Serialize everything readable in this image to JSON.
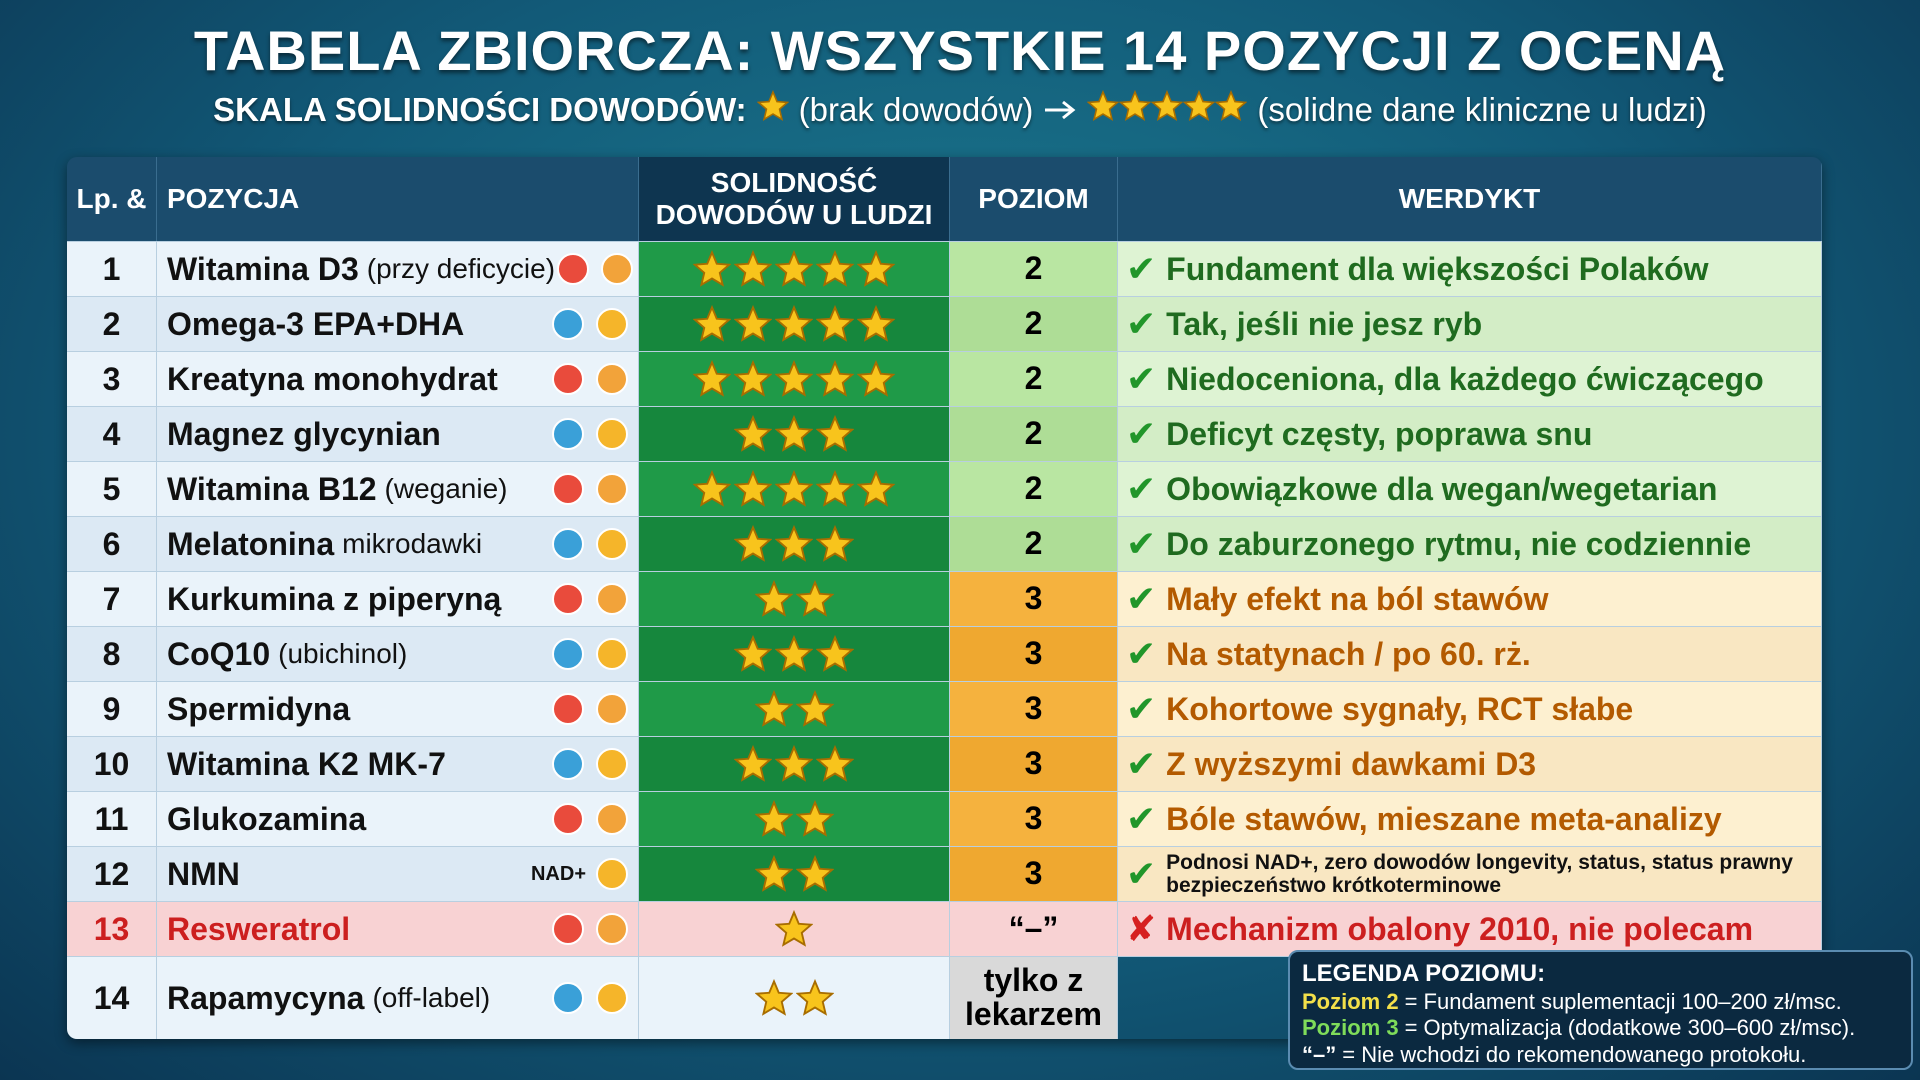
{
  "header": {
    "title": "TABELA ZBIORCZA: WSZYSTKIE 14 POZYCJI Z OCENĄ",
    "scale_label": "SKALA SOLIDNOŚCI DOWODÓW:",
    "scale_min_stars": 1,
    "scale_min_text": "(brak dowodów)",
    "scale_max_stars": 5,
    "scale_max_text": "(solidne dane kliniczne u ludzi)"
  },
  "table": {
    "columns": [
      "Lp. &",
      "POZYCJA",
      "SOLIDNOŚĆ DOWODÓW U LUDZI",
      "POZIOM",
      "WERDYKT"
    ],
    "rows": [
      {
        "num": 1,
        "name": "Witamina D3",
        "note": "(przy deficycie)",
        "stars": 5,
        "level": "2",
        "verdict_mark": "✔",
        "verdict": "Fundament dla większości Polaków",
        "bg": "#eaf3fa",
        "stars_bg": "#1f9a48",
        "level_bg": "#b9e6a2",
        "verdict_bg": "#def3d3",
        "text_color": "#1f6b1f",
        "name_color": "#111111"
      },
      {
        "num": 2,
        "name": "Omega-3 EPA+DHA",
        "note": "",
        "stars": 5,
        "level": "2",
        "verdict_mark": "✔",
        "verdict": "Tak, jeśli nie jesz ryb",
        "bg": "#dce9f4",
        "stars_bg": "#16873d",
        "level_bg": "#aedd96",
        "verdict_bg": "#d3edc6",
        "text_color": "#1f6b1f",
        "name_color": "#111111"
      },
      {
        "num": 3,
        "name": "Kreatyna monohydrat",
        "note": "",
        "stars": 5,
        "level": "2",
        "verdict_mark": "✔",
        "verdict": "Niedoceniona, dla każdego ćwiczącego",
        "bg": "#eaf3fa",
        "stars_bg": "#1f9a48",
        "level_bg": "#b9e6a2",
        "verdict_bg": "#def3d3",
        "text_color": "#1f6b1f",
        "name_color": "#111111"
      },
      {
        "num": 4,
        "name": "Magnez glycynian",
        "note": "",
        "stars": 3,
        "level": "2",
        "verdict_mark": "✔",
        "verdict": "Deficyt częsty, poprawa snu",
        "bg": "#dce9f4",
        "stars_bg": "#16873d",
        "level_bg": "#aedd96",
        "verdict_bg": "#d3edc6",
        "text_color": "#1f6b1f",
        "name_color": "#111111"
      },
      {
        "num": 5,
        "name": "Witamina B12",
        "note": "(weganie)",
        "stars": 5,
        "level": "2",
        "verdict_mark": "✔",
        "verdict": "Obowiązkowe dla wegan/wegetarian",
        "bg": "#eaf3fa",
        "stars_bg": "#1f9a48",
        "level_bg": "#b9e6a2",
        "verdict_bg": "#def3d3",
        "text_color": "#1f6b1f",
        "name_color": "#111111"
      },
      {
        "num": 6,
        "name": "Melatonina",
        "note": "mikrodawki",
        "stars": 3,
        "level": "2",
        "verdict_mark": "✔",
        "verdict": "Do zaburzonego rytmu, nie codziennie",
        "bg": "#dce9f4",
        "stars_bg": "#16873d",
        "level_bg": "#aedd96",
        "verdict_bg": "#d3edc6",
        "text_color": "#1f6b1f",
        "name_color": "#111111"
      },
      {
        "num": 7,
        "name": "Kurkumina z piperyną",
        "note": "",
        "stars": 2,
        "level": "3",
        "verdict_mark": "✔",
        "verdict": "Mały efekt na ból stawów",
        "bg": "#eaf3fa",
        "stars_bg": "#1f9a48",
        "level_bg": "#f5b23e",
        "verdict_bg": "#fdf0d0",
        "text_color": "#b35a00",
        "name_color": "#111111"
      },
      {
        "num": 8,
        "name": "CoQ10",
        "note": "(ubichinol)",
        "stars": 3,
        "level": "3",
        "verdict_mark": "✔",
        "verdict": "Na statynach / po 60. rż.",
        "bg": "#dce9f4",
        "stars_bg": "#16873d",
        "level_bg": "#efa830",
        "verdict_bg": "#f9e7c2",
        "text_color": "#b35a00",
        "name_color": "#111111"
      },
      {
        "num": 9,
        "name": "Spermidyna",
        "note": "",
        "stars": 2,
        "level": "3",
        "verdict_mark": "✔",
        "verdict": "Kohortowe sygnały, RCT słabe",
        "bg": "#eaf3fa",
        "stars_bg": "#1f9a48",
        "level_bg": "#f5b23e",
        "verdict_bg": "#fdf0d0",
        "text_color": "#b35a00",
        "name_color": "#111111"
      },
      {
        "num": 10,
        "name": "Witamina K2 MK-7",
        "note": "",
        "stars": 3,
        "level": "3",
        "verdict_mark": "✔",
        "verdict": "Z wyższymi dawkami D3",
        "bg": "#dce9f4",
        "stars_bg": "#16873d",
        "level_bg": "#efa830",
        "verdict_bg": "#f9e7c2",
        "text_color": "#b35a00",
        "name_color": "#111111"
      },
      {
        "num": 11,
        "name": "Glukozamina",
        "note": "",
        "stars": 2,
        "level": "3",
        "verdict_mark": "✔",
        "verdict": "Bóle stawów, mieszane meta-analizy",
        "bg": "#eaf3fa",
        "stars_bg": "#1f9a48",
        "level_bg": "#f5b23e",
        "verdict_bg": "#fdf0d0",
        "text_color": "#b35a00",
        "name_color": "#111111"
      },
      {
        "num": 12,
        "name": "NMN",
        "note": "",
        "icon_label": "NAD+",
        "stars": 2,
        "level": "3",
        "verdict_mark": "✔",
        "verdict": "Podnosi NAD+, zero dowodów longevity, status, status prawny bezpieczeństwo krótkoterminowe",
        "bg": "#dce9f4",
        "stars_bg": "#16873d",
        "level_bg": "#efa830",
        "verdict_bg": "#f9e7c2",
        "text_color": "#111111",
        "name_color": "#111111"
      },
      {
        "num": 13,
        "name": "Resweratrol",
        "note": "",
        "stars": 1,
        "level": "“–”",
        "verdict_mark": "✘",
        "verdict": "Mechanizm obalony 2010, nie polecam",
        "bg": "#f8d2d3",
        "stars_bg": "#f8d2d3",
        "level_bg": "#f8d2d3",
        "verdict_bg": "#f8d2d3",
        "text_color": "#cc1f1f",
        "name_color": "#cc1f1f"
      },
      {
        "num": 14,
        "name": "Rapamycyna",
        "note": "(off-label)",
        "stars": 2,
        "level": "tylko z lekarzem",
        "bg": "#eaf3fa",
        "stars_bg": "#eaf3fa",
        "level_bg": "#d9d9d9",
        "text_color": "#111111",
        "name_color": "#111111"
      }
    ]
  },
  "legend": {
    "title": "LEGENDA POZIOMU:",
    "items": [
      {
        "key": "Poziom 2",
        "text": "= Fundament suplementacji 100–200 zł/msc.",
        "key_color": "#f3e04a"
      },
      {
        "key": "Poziom 3",
        "text": "= Optymalizacja (dodatkowe 300–600 zł/msc).",
        "key_color": "#7fdc5a"
      },
      {
        "key": "“–”",
        "text": "= Nie wchodzi do rekomendowanego protokołu.",
        "key_color": "#ffffff"
      }
    ]
  }
}
